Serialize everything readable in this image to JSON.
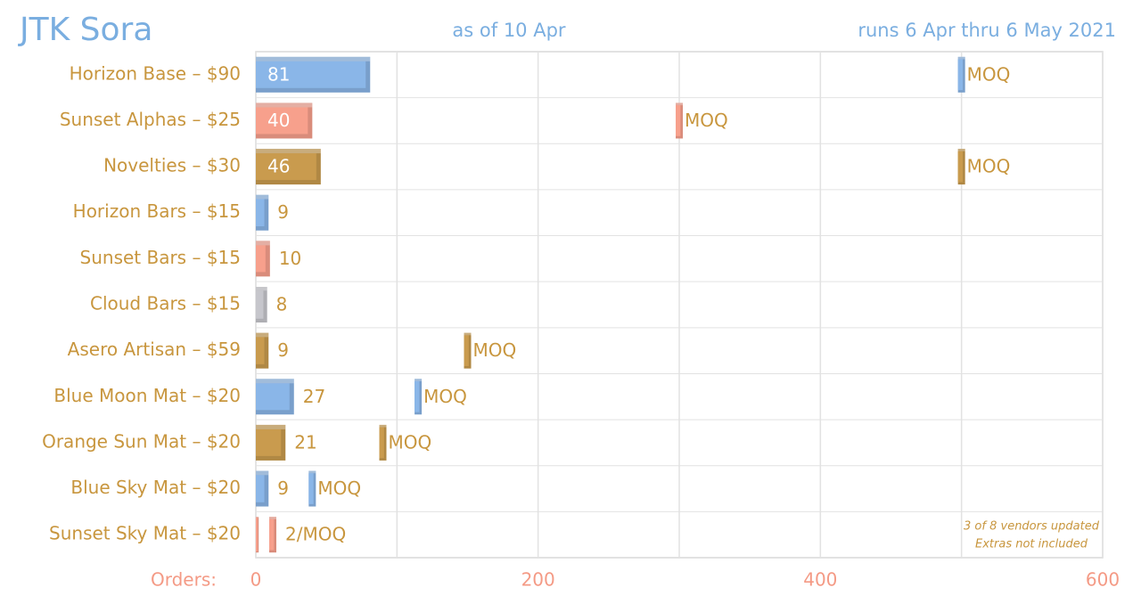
{
  "chart_data": {
    "type": "bar",
    "orientation": "horizontal",
    "title": "JTK Sora",
    "subtitle": "as of 10 Apr",
    "date_range": "runs 6 Apr thru 6 May 2021",
    "x_label": "Orders:",
    "categories": [
      "Horizon Base – $90",
      "Sunset Alphas – $25",
      "Novelties – $30",
      "Horizon Bars – $15",
      "Sunset Bars – $15",
      "Cloud Bars – $15",
      "Asero Artisan – $59",
      "Blue Moon Mat – $20",
      "Orange Sun Mat – $20",
      "Blue Sky Mat – $20",
      "Sunset Sky Mat – $20"
    ],
    "values": [
      81,
      40,
      46,
      9,
      10,
      8,
      9,
      27,
      21,
      9,
      2
    ],
    "value_labels": [
      "81",
      "40",
      "46",
      "9",
      "10",
      "8",
      "9",
      "27",
      "21",
      "9",
      "2/MOQ"
    ],
    "colors": [
      "#8ab6e8",
      "#f7a08c",
      "#c99b4e",
      "#8ab6e8",
      "#f7a08c",
      "#c6c6cc",
      "#c99b4e",
      "#8ab6e8",
      "#c99b4e",
      "#8ab6e8",
      "#f7a08c"
    ],
    "moq": [
      500,
      300,
      500,
      null,
      null,
      null,
      150,
      115,
      90,
      40,
      12
    ],
    "moq_labels": [
      "MOQ",
      "MOQ",
      "MOQ",
      null,
      null,
      null,
      "MOQ",
      "MOQ",
      "MOQ",
      "MOQ",
      null
    ],
    "xlim": [
      0,
      600
    ],
    "xticks": [
      0,
      200,
      400,
      600
    ],
    "minor_xticks": [
      100,
      300,
      500
    ],
    "grid": true,
    "notes": [
      "3 of 8 vendors updated",
      "Extras not included"
    ]
  }
}
